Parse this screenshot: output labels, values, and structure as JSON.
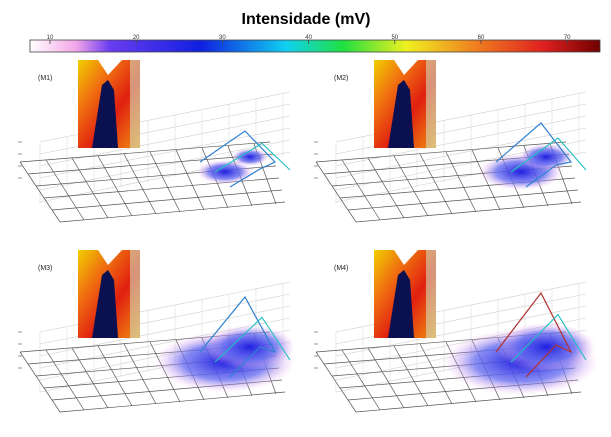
{
  "header": {
    "title": "Intensidade (mV)"
  },
  "colorbar": {
    "ticks": [
      "10",
      "20",
      "30",
      "40",
      "50",
      "60",
      "70"
    ]
  },
  "panels": [
    {
      "label": "(M1)"
    },
    {
      "label": "(M2)"
    },
    {
      "label": "(M3)"
    },
    {
      "label": "(M4)"
    }
  ]
}
